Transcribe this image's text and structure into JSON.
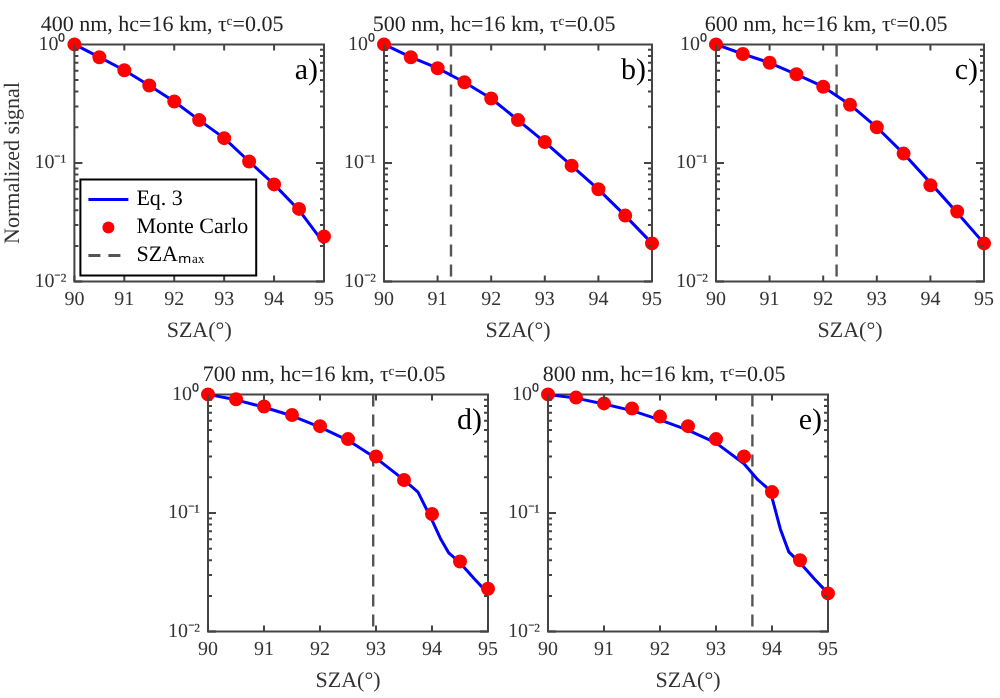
{
  "chart_data": [
    {
      "type": "line",
      "title": "400 nm, hc=16 km, τᶜ=0.05",
      "xlabel": "SZA(°)",
      "ylabel": "Normalized signal",
      "xlim": [
        90,
        95
      ],
      "xticks": [
        90,
        91,
        92,
        93,
        94,
        95
      ],
      "ylim": [
        0.01,
        1
      ],
      "yticks": [
        {
          "value": 0.01,
          "label": "10⁻²"
        },
        {
          "value": 0.1,
          "label": "10⁻¹"
        },
        {
          "value": 1,
          "label": "10⁰"
        }
      ],
      "log": "y",
      "grid": false,
      "legend": "bottom left",
      "annotations": [
        "a)"
      ],
      "series": [
        {
          "name": "Eq. 3",
          "type": "line",
          "color": "#0000ff",
          "marker": "none",
          "line_style": "solid",
          "x": [
            90,
            90.5,
            91,
            91.5,
            92,
            92.5,
            93,
            93.5,
            94,
            94.5,
            95
          ],
          "values": [
            1,
            0.78,
            0.605,
            0.45,
            0.33,
            0.23,
            0.162,
            0.103,
            0.066,
            0.04,
            0.021
          ]
        },
        {
          "name": "Monte Carlo",
          "type": "scatter",
          "color": "#ff0000",
          "marker": "circle",
          "x": [
            90,
            90.5,
            91,
            91.5,
            92,
            92.5,
            93,
            93.5,
            94,
            94.5,
            95
          ],
          "values": [
            1,
            0.78,
            0.605,
            0.45,
            0.33,
            0.23,
            0.162,
            0.103,
            0.066,
            0.041,
            0.024
          ]
        },
        {
          "name": "SZAₘₐₓ",
          "type": "line",
          "color": "#555555",
          "marker": "none",
          "line_style": "dashed"
        }
      ]
    },
    {
      "type": "line",
      "title": "500 nm, hc=16 km, τᶜ=0.05",
      "xlabel": "SZA(°)",
      "xlim": [
        90,
        95
      ],
      "xticks": [
        90,
        91,
        92,
        93,
        94,
        95
      ],
      "ylim": [
        0.01,
        1
      ],
      "yticks": [
        {
          "value": 0.01,
          "label": "10⁻²"
        },
        {
          "value": 0.1,
          "label": "10⁻¹"
        },
        {
          "value": 1,
          "label": "10⁰"
        }
      ],
      "log": "y",
      "grid": false,
      "annotations": [
        "b)"
      ],
      "ref_lines": [
        {
          "axis": "x",
          "value": 91.25,
          "color": "#555555",
          "line_style": "dashed"
        }
      ],
      "series": [
        {
          "type": "line",
          "color": "#0000ff",
          "marker": "none",
          "line_style": "solid",
          "x": [
            90,
            90.5,
            91,
            91.5,
            92,
            92.5,
            93,
            93.5,
            94,
            94.5,
            95
          ],
          "values": [
            1,
            0.78,
            0.63,
            0.48,
            0.35,
            0.23,
            0.15,
            0.095,
            0.06,
            0.036,
            0.021
          ]
        },
        {
          "type": "scatter",
          "color": "#ff0000",
          "marker": "circle",
          "x": [
            90,
            90.5,
            91,
            91.5,
            92,
            92.5,
            93,
            93.5,
            94,
            94.5,
            95
          ],
          "values": [
            1,
            0.78,
            0.63,
            0.48,
            0.35,
            0.23,
            0.15,
            0.095,
            0.06,
            0.036,
            0.021
          ]
        }
      ]
    },
    {
      "type": "line",
      "title": "600 nm, hc=16 km, τᶜ=0.05",
      "xlabel": "SZA(°)",
      "xlim": [
        90,
        95
      ],
      "xticks": [
        90,
        91,
        92,
        93,
        94,
        95
      ],
      "ylim": [
        0.01,
        1
      ],
      "yticks": [
        {
          "value": 0.01,
          "label": "10⁻²"
        },
        {
          "value": 0.1,
          "label": "10⁻¹"
        },
        {
          "value": 1,
          "label": "10⁰"
        }
      ],
      "log": "y",
      "grid": false,
      "annotations": [
        "c)"
      ],
      "ref_lines": [
        {
          "axis": "x",
          "value": 92.25,
          "color": "#555555",
          "line_style": "dashed"
        }
      ],
      "series": [
        {
          "type": "line",
          "color": "#0000ff",
          "marker": "none",
          "line_style": "solid",
          "x": [
            90,
            90.5,
            91,
            91.5,
            92,
            92.5,
            93,
            93.5,
            94,
            94.5,
            95
          ],
          "values": [
            1,
            0.83,
            0.7,
            0.56,
            0.44,
            0.31,
            0.2,
            0.12,
            0.068,
            0.038,
            0.021
          ]
        },
        {
          "type": "scatter",
          "color": "#ff0000",
          "marker": "circle",
          "x": [
            90,
            90.5,
            91,
            91.5,
            92,
            92.5,
            93,
            93.5,
            94,
            94.5,
            95
          ],
          "values": [
            1,
            0.83,
            0.7,
            0.56,
            0.44,
            0.31,
            0.2,
            0.12,
            0.065,
            0.039,
            0.021
          ]
        }
      ]
    },
    {
      "type": "line",
      "title": "700 nm, hc=16 km, τᶜ=0.05",
      "xlabel": "SZA(°)",
      "xlim": [
        90,
        95
      ],
      "xticks": [
        90,
        91,
        92,
        93,
        94,
        95
      ],
      "ylim": [
        0.01,
        1
      ],
      "yticks": [
        {
          "value": 0.01,
          "label": "10⁻²"
        },
        {
          "value": 0.1,
          "label": "10⁻¹"
        },
        {
          "value": 1,
          "label": "10⁰"
        }
      ],
      "log": "y",
      "grid": false,
      "annotations": [
        "d)"
      ],
      "ref_lines": [
        {
          "axis": "x",
          "value": 92.95,
          "color": "#555555",
          "line_style": "dashed"
        }
      ],
      "series": [
        {
          "type": "line",
          "color": "#0000ff",
          "marker": "none",
          "line_style": "solid",
          "x": [
            90,
            90.5,
            91,
            91.5,
            92,
            92.5,
            93,
            93.5,
            93.75,
            94,
            94.15,
            94.3,
            94.5,
            94.75,
            95
          ],
          "values": [
            1,
            0.9,
            0.78,
            0.66,
            0.53,
            0.41,
            0.29,
            0.19,
            0.15,
            0.087,
            0.061,
            0.046,
            0.038,
            0.028,
            0.021
          ]
        },
        {
          "type": "scatter",
          "color": "#ff0000",
          "marker": "circle",
          "x": [
            90,
            90.5,
            91,
            91.5,
            92,
            92.5,
            93,
            93.5,
            94,
            94.5,
            95
          ],
          "values": [
            1,
            0.91,
            0.79,
            0.67,
            0.54,
            0.42,
            0.3,
            0.19,
            0.098,
            0.039,
            0.023
          ]
        }
      ]
    },
    {
      "type": "line",
      "title": "800 nm, hc=16 km, τᶜ=0.05",
      "xlabel": "SZA(°)",
      "xlim": [
        90,
        95
      ],
      "xticks": [
        90,
        91,
        92,
        93,
        94,
        95
      ],
      "ylim": [
        0.01,
        1
      ],
      "yticks": [
        {
          "value": 0.01,
          "label": "10⁻²"
        },
        {
          "value": 0.1,
          "label": "10⁻¹"
        },
        {
          "value": 1,
          "label": "10⁰"
        }
      ],
      "log": "y",
      "grid": false,
      "annotations": [
        "e)"
      ],
      "ref_lines": [
        {
          "axis": "x",
          "value": 93.65,
          "color": "#555555",
          "line_style": "dashed"
        }
      ],
      "series": [
        {
          "type": "line",
          "color": "#0000ff",
          "marker": "none",
          "line_style": "solid",
          "x": [
            90,
            90.5,
            91,
            91.5,
            92,
            92.5,
            93,
            93.5,
            93.75,
            93.9,
            94,
            94.15,
            94.3,
            94.5,
            94.75,
            95
          ],
          "values": [
            1,
            0.93,
            0.83,
            0.73,
            0.61,
            0.5,
            0.39,
            0.26,
            0.19,
            0.165,
            0.135,
            0.073,
            0.047,
            0.038,
            0.028,
            0.021
          ]
        },
        {
          "type": "scatter",
          "color": "#ff0000",
          "marker": "circle",
          "x": [
            90,
            90.5,
            91,
            91.5,
            92,
            92.5,
            93,
            93.5,
            94,
            94.5,
            95
          ],
          "values": [
            1,
            0.94,
            0.84,
            0.76,
            0.65,
            0.54,
            0.42,
            0.3,
            0.15,
            0.04,
            0.021
          ]
        }
      ]
    }
  ]
}
